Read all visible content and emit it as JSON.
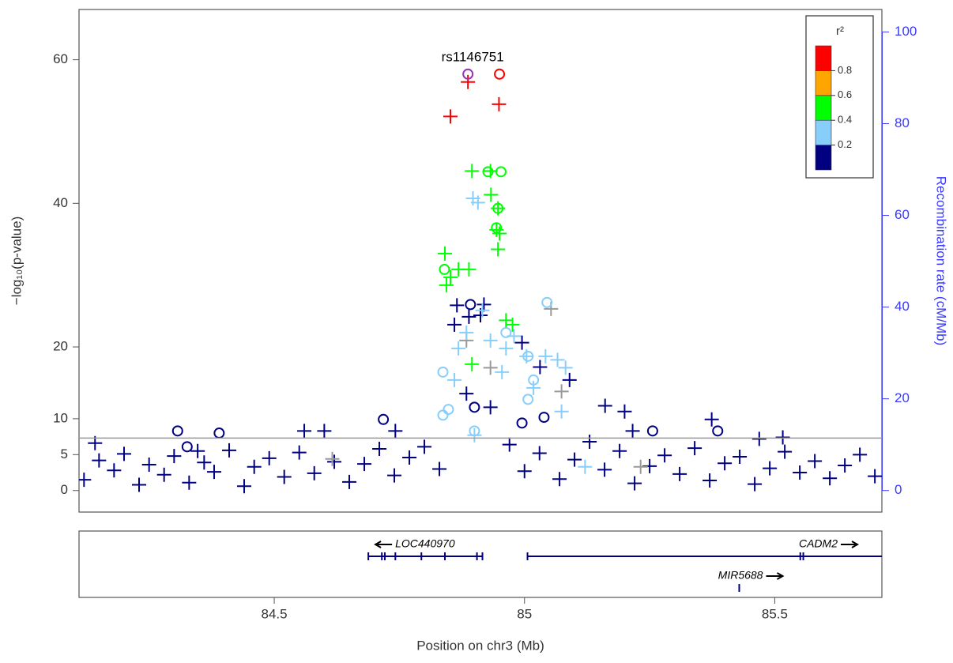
{
  "chart_data": {
    "type": "scatter",
    "annotation": "rs1146751",
    "xlabel": "Position on chr3 (Mb)",
    "ylabel": "−log₁₀(p-value)",
    "y2label": "Recombination rate (cM/Mb)",
    "xlim": [
      84.11,
      85.714
    ],
    "xticks": [
      84.5,
      85,
      85.5
    ],
    "ylim": [
      -3,
      67
    ],
    "yticks": [
      0,
      5,
      10,
      20,
      40,
      60
    ],
    "y2lim": [
      -4.7,
      104.9
    ],
    "y2ticks": [
      0,
      20,
      40,
      60,
      80,
      100
    ],
    "threshold": 7.3,
    "legend": {
      "title": "r²",
      "ticks": [
        0.2,
        0.4,
        0.6,
        0.8
      ],
      "colors": [
        "#000080",
        "#87CEFA",
        "#00FF00",
        "#FFA500",
        "#FF0000"
      ]
    },
    "series": [
      {
        "color": "#000080",
        "marker": "+",
        "x": [
          84.865,
          84.86,
          84.912,
          84.889,
          84.919,
          84.995,
          85.031,
          85.09,
          85.161,
          85.2,
          85.374,
          84.884,
          84.932,
          84.56,
          84.6,
          85.216,
          85.469,
          85.516,
          84.142,
          84.347,
          84.742,
          84.12,
          84.15,
          84.18,
          84.2,
          84.23,
          84.25,
          84.28,
          84.3,
          84.33,
          84.36,
          84.38,
          84.41,
          84.44,
          84.46,
          84.49,
          84.52,
          84.55,
          84.58,
          84.62,
          84.65,
          84.68,
          84.71,
          84.74,
          84.77,
          84.8,
          84.83,
          84.97,
          85.0,
          85.03,
          85.07,
          85.1,
          85.13,
          85.16,
          85.19,
          85.22,
          85.25,
          85.28,
          85.31,
          85.34,
          85.37,
          85.4,
          85.43,
          85.46,
          85.49,
          85.52,
          85.55,
          85.58,
          85.61,
          85.64,
          85.67,
          85.7
        ],
        "values": [
          25.8,
          23.1,
          24.4,
          24.2,
          25.9,
          20.6,
          17.2,
          15.4,
          11.8,
          11.0,
          9.9,
          13.5,
          11.6,
          8.3,
          8.3,
          8.3,
          7.2,
          7.4,
          6.6,
          5.5,
          8.3,
          1.5,
          4.2,
          2.8,
          5.1,
          0.8,
          3.6,
          2.2,
          4.8,
          1.1,
          3.9,
          2.6,
          5.6,
          0.6,
          3.3,
          4.5,
          1.9,
          5.3,
          2.4,
          4.0,
          1.2,
          3.7,
          5.8,
          2.1,
          4.6,
          6.1,
          3.0,
          6.4,
          2.7,
          5.2,
          1.6,
          4.3,
          6.8,
          2.9,
          5.5,
          1.0,
          3.4,
          4.9,
          2.3,
          5.9,
          1.4,
          3.8,
          4.7,
          0.9,
          3.1,
          5.4,
          2.5,
          4.1,
          1.7,
          3.5,
          5.0,
          2.0
        ]
      },
      {
        "color": "#000080",
        "marker": "o",
        "x": [
          84.892,
          84.307,
          84.39,
          84.718,
          84.9,
          85.039,
          84.995,
          85.256,
          85.386,
          84.326
        ],
        "values": [
          25.9,
          8.3,
          8.0,
          9.9,
          11.6,
          10.2,
          9.4,
          8.3,
          8.3,
          6.1
        ]
      },
      {
        "color": "#999999",
        "marker": "+",
        "x": [
          85.053,
          84.932,
          85.074,
          84.884,
          84.616,
          85.232
        ],
        "values": [
          25.3,
          17.1,
          13.8,
          20.9,
          4.4,
          3.3
        ]
      },
      {
        "color": "#87CEFA",
        "marker": "+",
        "x": [
          84.897,
          84.907,
          84.916,
          84.884,
          84.868,
          84.932,
          84.963,
          84.979,
          85.004,
          85.042,
          85.066,
          85.082,
          84.86,
          84.955,
          85.018,
          85.074,
          84.9,
          85.121
        ],
        "values": [
          40.7,
          40.1,
          25.1,
          22.0,
          19.8,
          20.9,
          19.8,
          21.5,
          18.7,
          18.7,
          18.2,
          17.1,
          15.4,
          16.5,
          14.3,
          11.0,
          7.7,
          3.3
        ]
      },
      {
        "color": "#87CEFA",
        "marker": "o",
        "x": [
          85.045,
          84.837,
          85.007,
          84.963,
          84.837,
          84.848,
          85.018,
          84.9,
          85.007
        ],
        "values": [
          26.2,
          16.5,
          18.7,
          22.0,
          10.5,
          11.3,
          15.4,
          8.3,
          12.7
        ]
      },
      {
        "color": "#00FF00",
        "marker": "+",
        "x": [
          84.895,
          84.932,
          84.933,
          84.947,
          84.944,
          84.95,
          84.947,
          84.841,
          84.868,
          84.889,
          84.852,
          84.844,
          84.963,
          84.976,
          84.895
        ],
        "values": [
          44.5,
          44.5,
          41.2,
          39.3,
          36.3,
          35.8,
          33.6,
          33.0,
          30.8,
          30.8,
          29.7,
          28.6,
          23.7,
          23.1,
          17.6
        ]
      },
      {
        "color": "#00FF00",
        "marker": "o",
        "x": [
          84.953,
          84.927,
          84.947,
          84.944,
          84.84
        ],
        "values": [
          44.4,
          44.4,
          39.3,
          36.6,
          30.8
        ]
      },
      {
        "color": "#FF0000",
        "marker": "+",
        "x": [
          84.887,
          84.852,
          84.949
        ],
        "values": [
          56.9,
          52.1,
          53.8
        ]
      },
      {
        "color": "#FF0000",
        "marker": "o",
        "x": [
          84.95
        ],
        "values": [
          58.0
        ]
      },
      {
        "color": "#9632B8",
        "marker": "o",
        "x": [
          84.887
        ],
        "values": [
          58.0
        ]
      }
    ],
    "genes": [
      {
        "name": "LOC440970",
        "direction": "left",
        "start": 84.688,
        "end": 84.916,
        "exons": [
          84.688,
          84.715,
          84.721,
          84.742,
          84.794,
          84.841,
          84.905,
          84.916
        ]
      },
      {
        "name": "CADM2",
        "direction": "right",
        "start": 85.006,
        "end": 85.714,
        "exons": [
          85.006,
          85.551,
          85.557
        ]
      },
      {
        "name": "MIR5688",
        "direction": "right",
        "start": 85.429,
        "end": 85.429,
        "exons": [
          85.429
        ]
      }
    ]
  }
}
